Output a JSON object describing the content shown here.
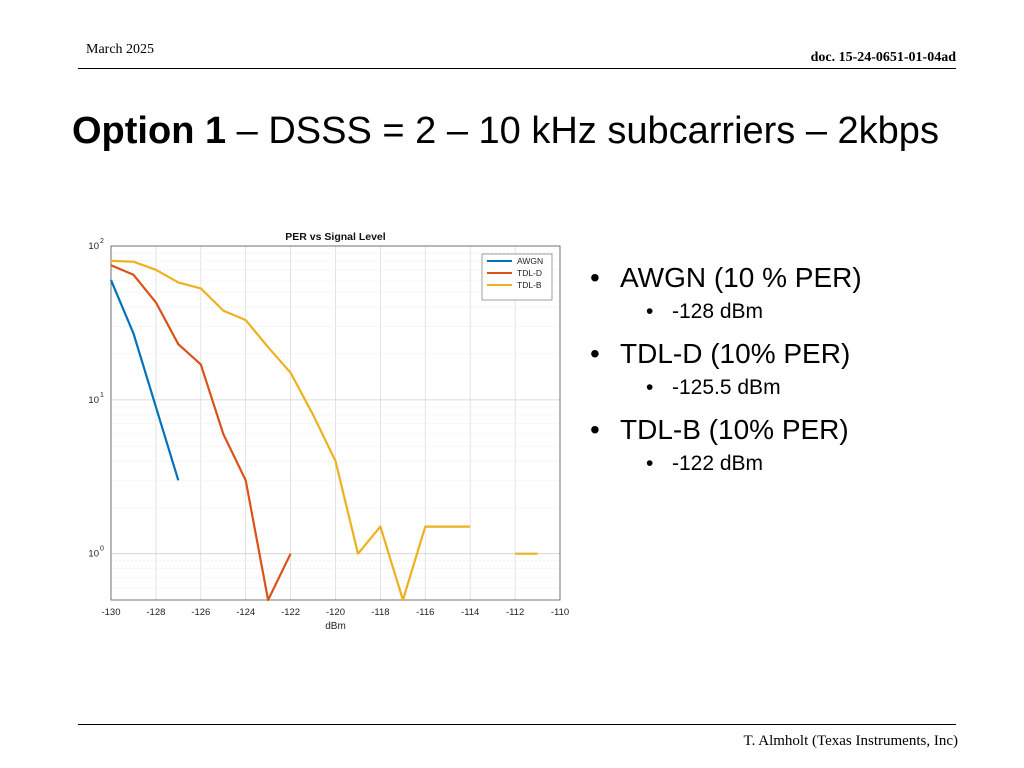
{
  "header": {
    "date": "March 2025",
    "doc": "doc. 15-24-0651-01-04ad"
  },
  "title": {
    "bold": "Option 1",
    "rest": " – DSSS = 2 – 10 kHz subcarriers – 2kbps"
  },
  "footer": "T. Almholt (Texas Instruments, Inc)",
  "bullets": [
    {
      "label": "AWGN (10 % PER)",
      "sub": "-128 dBm"
    },
    {
      "label": "TDL-D (10% PER)",
      "sub": "-125.5 dBm"
    },
    {
      "label": "TDL-B (10% PER)",
      "sub": "-122 dBm"
    }
  ],
  "chart_data": {
    "type": "line",
    "title": "PER vs Signal Level",
    "xlabel": "dBm",
    "ylabel": "",
    "xlim": [
      -130,
      -110
    ],
    "ylim": [
      0.5,
      100
    ],
    "yscale": "log",
    "xticks": [
      -130,
      -128,
      -126,
      -124,
      -122,
      -120,
      -118,
      -116,
      -114,
      -112,
      -110
    ],
    "yticks": [
      1,
      10,
      100
    ],
    "ytick_labels": [
      {
        "base": "10",
        "exp": "0"
      },
      {
        "base": "10",
        "exp": "1"
      },
      {
        "base": "10",
        "exp": "2"
      }
    ],
    "grid": true,
    "legend_position": "top-right",
    "series": [
      {
        "name": "AWGN",
        "color": "#0072BD",
        "points": [
          [
            -130,
            60
          ],
          [
            -129,
            27
          ],
          [
            -128,
            9
          ],
          [
            -127,
            3
          ]
        ]
      },
      {
        "name": "TDL-D",
        "color": "#D95319",
        "points": [
          [
            -130,
            75
          ],
          [
            -129,
            65
          ],
          [
            -128,
            43
          ],
          [
            -127,
            23
          ],
          [
            -126,
            17
          ],
          [
            -125,
            6
          ],
          [
            -124,
            3
          ],
          [
            -123,
            0.5
          ],
          [
            -122,
            1
          ]
        ]
      },
      {
        "name": "TDL-B",
        "color": "#EDB120",
        "segments": [
          [
            [
              -130,
              80
            ],
            [
              -129,
              79
            ],
            [
              -128,
              70
            ],
            [
              -127,
              58
            ],
            [
              -126,
              53
            ],
            [
              -125,
              38
            ],
            [
              -124,
              33
            ],
            [
              -123,
              22
            ],
            [
              -122,
              15
            ],
            [
              -121,
              8
            ],
            [
              -120,
              4
            ],
            [
              -119,
              1
            ],
            [
              -118,
              1.5
            ],
            [
              -117,
              0.5
            ],
            [
              -116,
              1.5
            ],
            [
              -115,
              1.5
            ],
            [
              -114,
              1.5
            ]
          ],
          [
            [
              -112,
              1
            ],
            [
              -111,
              1
            ]
          ]
        ]
      }
    ]
  }
}
